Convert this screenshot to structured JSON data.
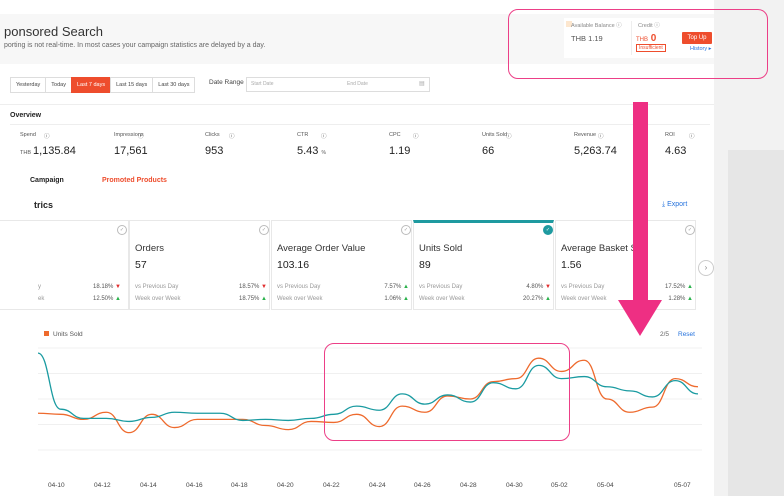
{
  "header": {
    "title": "ponsored Search",
    "subtitle": "porting is not real-time. In most cases your campaign statistics are delayed by a day."
  },
  "balance": {
    "available_label": "Available Balance",
    "available_value": "THB  1.19",
    "credit_label": "Credit",
    "credit_currency": "THB",
    "credit_value": "0",
    "insufficient": "Insufficient",
    "topup": "Top Up",
    "history": "History ▸"
  },
  "filters": {
    "buttons": [
      "Yesterday",
      "Today",
      "Last 7 days",
      "Last 15 days",
      "Last 30 days"
    ],
    "active_index": 2,
    "date_range_label": "Date Range",
    "start_placeholder": "Start Date",
    "end_placeholder": "End Date"
  },
  "overview": {
    "title": "Overview",
    "items": [
      {
        "label": "Spend",
        "currency": "THB",
        "value": "1,135.84",
        "unit": ""
      },
      {
        "label": "Impressions",
        "currency": "",
        "value": "17,561",
        "unit": ""
      },
      {
        "label": "Clicks",
        "currency": "",
        "value": "953",
        "unit": ""
      },
      {
        "label": "CTR",
        "currency": "",
        "value": "5.43",
        "unit": "%"
      },
      {
        "label": "CPC",
        "currency": "",
        "value": "1.19",
        "unit": ""
      },
      {
        "label": "Units Sold",
        "currency": "",
        "value": "66",
        "unit": ""
      },
      {
        "label": "Revenue",
        "currency": "",
        "value": "5,263.74",
        "unit": ""
      },
      {
        "label": "ROI",
        "currency": "",
        "value": "4.63",
        "unit": ""
      }
    ]
  },
  "tabs": {
    "campaign": "Campaign",
    "promoted": "Promoted Products"
  },
  "metrics": {
    "title": "trics",
    "export": "Export",
    "partial": {
      "prev_lbl": "y",
      "prev_pct": "18.18%",
      "prev_dir": "down",
      "week_lbl": "ek",
      "week_pct": "12.50%",
      "week_dir": "up"
    },
    "cards": [
      {
        "name": "Orders",
        "value": "57",
        "prev_label": "vs Previous Day",
        "prev_pct": "18.57%",
        "prev_dir": "down",
        "week_label": "Week over Week",
        "week_pct": "18.75%",
        "week_dir": "up",
        "selected": false
      },
      {
        "name": "Average Order Value",
        "value": "103.16",
        "prev_label": "vs Previous Day",
        "prev_pct": "7.57%",
        "prev_dir": "up",
        "week_label": "Week over Week",
        "week_pct": "1.06%",
        "week_dir": "up",
        "selected": false
      },
      {
        "name": "Units Sold",
        "value": "89",
        "prev_label": "vs Previous Day",
        "prev_pct": "4.80%",
        "prev_dir": "down",
        "week_label": "Week over Week",
        "week_pct": "20.27%",
        "week_dir": "up",
        "selected": true
      },
      {
        "name": "Average Basket S",
        "value": "1.56",
        "prev_label": "vs Previous Day",
        "prev_pct": "17.52%",
        "prev_dir": "up",
        "week_label": "Week over Week",
        "week_pct": "1.28%",
        "week_dir": "up",
        "selected": false
      }
    ]
  },
  "chart_legend": "Units Sold",
  "pager": "2/5",
  "reset": "Reset",
  "chart_data": {
    "type": "line",
    "xticks": [
      "04-10",
      "04-12",
      "04-14",
      "04-16",
      "04-18",
      "04-20",
      "04-22",
      "04-24",
      "04-26",
      "04-28",
      "04-30",
      "05-02",
      "05-04",
      "05-07"
    ],
    "series": [
      {
        "color": "#ee6a2d",
        "values": [
          0.36,
          0.35,
          0.3,
          0.37,
          0.17,
          0.35,
          0.22,
          0.3,
          0.3,
          0.3,
          0.24,
          0.2,
          0.28,
          0.27,
          0.35,
          0.23,
          0.43,
          0.37,
          0.53,
          0.5,
          0.67,
          0.7,
          0.9,
          0.77,
          0.88,
          0.5,
          0.37,
          0.42,
          0.7,
          0.62
        ]
      },
      {
        "color": "#1a9ba1",
        "values": [
          0.95,
          0.4,
          0.31,
          0.31,
          0.28,
          0.32,
          0.37,
          0.36,
          0.36,
          0.29,
          0.3,
          0.29,
          0.31,
          0.35,
          0.43,
          0.39,
          0.55,
          0.45,
          0.54,
          0.47,
          0.66,
          0.6,
          0.83,
          0.7,
          0.72,
          0.62,
          0.58,
          0.52,
          0.68,
          0.55
        ]
      }
    ]
  }
}
